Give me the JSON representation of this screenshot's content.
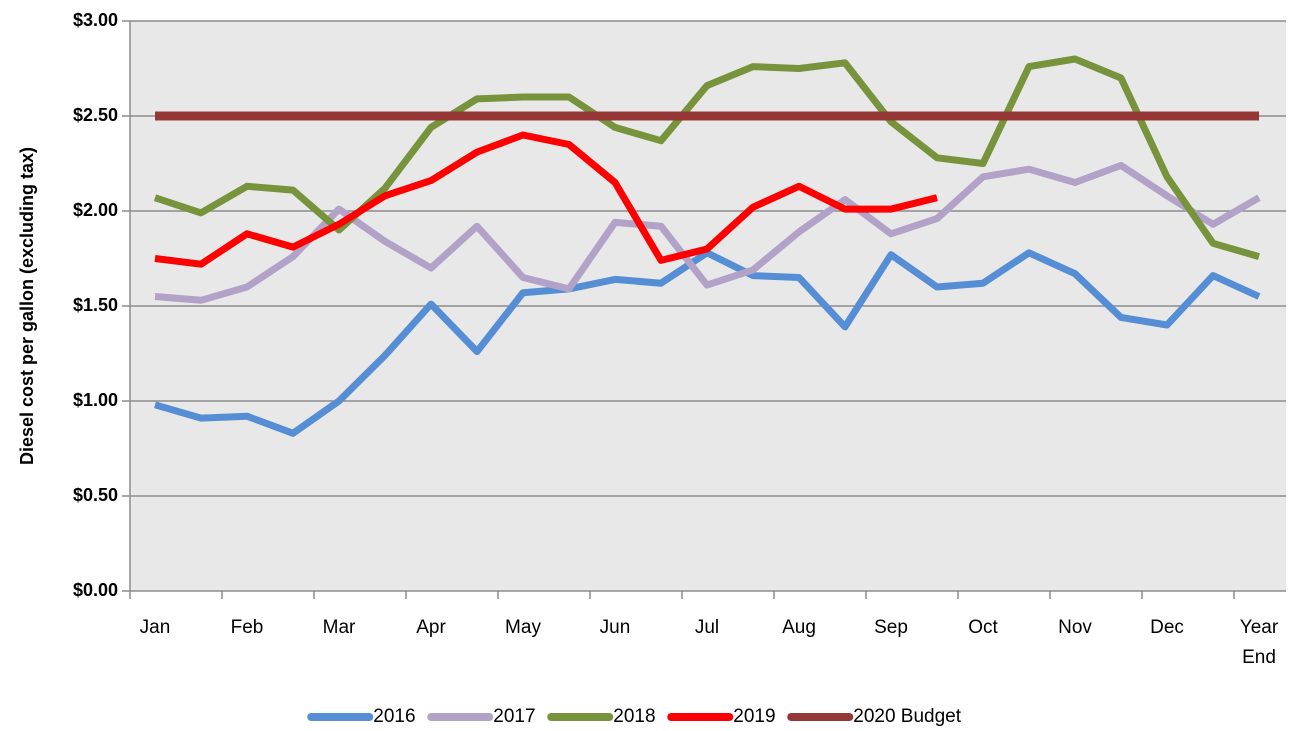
{
  "chart_data": {
    "type": "line",
    "y_label": "Diesel cost per gallon (excluding tax)",
    "categories": [
      "Jan",
      null,
      "Feb",
      null,
      "Mar",
      null,
      "Apr",
      null,
      "May",
      null,
      "Jun",
      null,
      "Jul",
      null,
      "Aug",
      null,
      "Sep",
      null,
      "Oct",
      null,
      "Nov",
      null,
      "Dec",
      null,
      "Year End"
    ],
    "series": [
      {
        "name": "2016",
        "color": "#558ed5",
        "values": [
          0.98,
          0.91,
          0.92,
          0.83,
          1.0,
          1.24,
          1.51,
          1.26,
          1.57,
          1.59,
          1.64,
          1.62,
          1.78,
          1.66,
          1.65,
          1.39,
          1.77,
          1.6,
          1.62,
          1.78,
          1.67,
          1.44,
          1.4,
          1.66,
          1.55
        ]
      },
      {
        "name": "2017",
        "color": "#b3a2c7",
        "values": [
          1.55,
          1.53,
          1.6,
          1.76,
          2.01,
          1.84,
          1.7,
          1.92,
          1.65,
          1.59,
          1.94,
          1.92,
          1.61,
          1.69,
          1.89,
          2.06,
          1.88,
          1.96,
          2.18,
          2.22,
          2.15,
          2.24,
          2.08,
          1.93,
          2.07
        ]
      },
      {
        "name": "2018",
        "color": "#77933c",
        "values": [
          2.07,
          1.99,
          2.13,
          2.11,
          1.9,
          2.12,
          2.44,
          2.59,
          2.6,
          2.6,
          2.44,
          2.37,
          2.66,
          2.76,
          2.75,
          2.78,
          2.47,
          2.28,
          2.25,
          2.76,
          2.8,
          2.7,
          2.18,
          1.83,
          1.76
        ]
      },
      {
        "name": "2019",
        "color": "#ff0000",
        "values": [
          1.75,
          1.72,
          1.88,
          1.81,
          1.93,
          2.08,
          2.16,
          2.31,
          2.4,
          2.35,
          2.15,
          1.74,
          1.8,
          2.02,
          2.13,
          2.01,
          2.01,
          2.07,
          null,
          null,
          null,
          null,
          null,
          null,
          null
        ]
      },
      {
        "name": "2020 Budget",
        "color": "#953735",
        "values": [
          2.5,
          2.5,
          2.5,
          2.5,
          2.5,
          2.5,
          2.5,
          2.5,
          2.5,
          2.5,
          2.5,
          2.5,
          2.5,
          2.5,
          2.5,
          2.5,
          2.5,
          2.5,
          2.5,
          2.5,
          2.5,
          2.5,
          2.5,
          2.5,
          2.5
        ]
      }
    ],
    "ylim": [
      0,
      3
    ],
    "yticks": [
      {
        "value": 0,
        "label": "$0.00"
      },
      {
        "value": 0.5,
        "label": "$0.50"
      },
      {
        "value": 1,
        "label": "$1.00"
      },
      {
        "value": 1.5,
        "label": "$1.50"
      },
      {
        "value": 2,
        "label": "$2.00"
      },
      {
        "value": 2.5,
        "label": "$2.50"
      },
      {
        "value": 3,
        "label": "$3.00"
      }
    ],
    "grid": true,
    "legend": "bottom"
  }
}
